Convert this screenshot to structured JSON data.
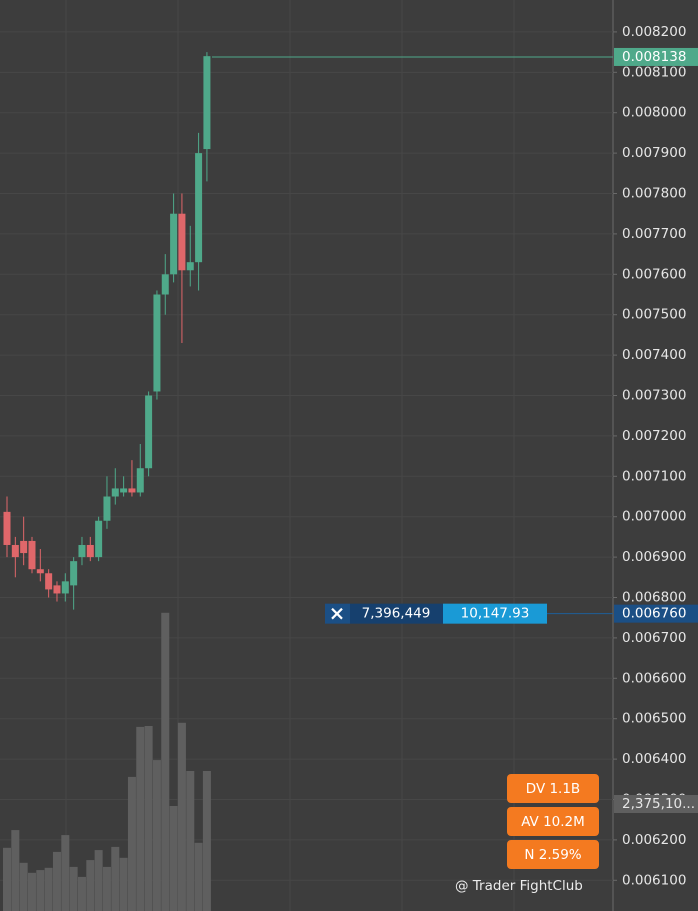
{
  "chart_data": {
    "type": "candlestick",
    "ylim": [
      0.006024,
      0.008279
    ],
    "yticks": [
      {
        "value": 0.0082,
        "label": "0.008200"
      },
      {
        "value": 0.0081,
        "label": "0.008100"
      },
      {
        "value": 0.008,
        "label": "0.008000"
      },
      {
        "value": 0.0079,
        "label": "0.007900"
      },
      {
        "value": 0.0078,
        "label": "0.007800"
      },
      {
        "value": 0.0077,
        "label": "0.007700"
      },
      {
        "value": 0.0076,
        "label": "0.007600"
      },
      {
        "value": 0.0075,
        "label": "0.007500"
      },
      {
        "value": 0.0074,
        "label": "0.007400"
      },
      {
        "value": 0.0073,
        "label": "0.007300"
      },
      {
        "value": 0.0072,
        "label": "0.007200"
      },
      {
        "value": 0.0071,
        "label": "0.007100"
      },
      {
        "value": 0.007,
        "label": "0.007000"
      },
      {
        "value": 0.0069,
        "label": "0.006900"
      },
      {
        "value": 0.0068,
        "label": "0.006800"
      },
      {
        "value": 0.0067,
        "label": "0.006700"
      },
      {
        "value": 0.0066,
        "label": "0.006600"
      },
      {
        "value": 0.0065,
        "label": "0.006500"
      },
      {
        "value": 0.0064,
        "label": "0.006400"
      },
      {
        "value": 0.0063,
        "label": "0.006300"
      },
      {
        "value": 0.0062,
        "label": "0.006200"
      },
      {
        "value": 0.0061,
        "label": "0.006100"
      }
    ],
    "grid": true,
    "up_color": "#4fa98a",
    "down_color": "#e0676a",
    "open": [
      0.007012,
      0.00693,
      0.00694,
      0.00694,
      0.00687,
      0.00686,
      0.00683,
      0.00681,
      0.00683,
      0.0069,
      0.00693,
      0.0069,
      0.00699,
      0.00705,
      0.00706,
      0.00707,
      0.00706,
      0.00712,
      0.00731,
      0.00755,
      0.0076,
      0.00775,
      0.00761,
      0.00763,
      0.00791
    ],
    "high": [
      0.00705,
      0.00695,
      0.007,
      0.00695,
      0.00692,
      0.00687,
      0.00684,
      0.00686,
      0.0069,
      0.00695,
      0.00695,
      0.007,
      0.0071,
      0.00712,
      0.0071,
      0.00714,
      0.00718,
      0.00731,
      0.00756,
      0.00765,
      0.0078,
      0.0078,
      0.00772,
      0.00795,
      0.00815
    ],
    "low": [
      0.0069,
      0.00685,
      0.00688,
      0.00686,
      0.00684,
      0.0068,
      0.00679,
      0.00679,
      0.00677,
      0.00688,
      0.00689,
      0.00689,
      0.00697,
      0.00703,
      0.00705,
      0.00705,
      0.00705,
      0.0071,
      0.00729,
      0.0075,
      0.00758,
      0.00743,
      0.00757,
      0.00756,
      0.00783
    ],
    "close": [
      0.00693,
      0.0069,
      0.00691,
      0.00687,
      0.00686,
      0.00682,
      0.00681,
      0.00684,
      0.00689,
      0.00693,
      0.0069,
      0.00699,
      0.00705,
      0.00707,
      0.00707,
      0.00706,
      0.00712,
      0.0073,
      0.00755,
      0.0076,
      0.00775,
      0.00761,
      0.00763,
      0.0079,
      0.00814
    ],
    "volume": [
      1390000,
      1780000,
      1060000,
      840000,
      900000,
      950000,
      1300000,
      1670000,
      970000,
      750000,
      1120000,
      1340000,
      970000,
      1410000,
      1170000,
      2950000,
      4050000,
      4070000,
      3320000,
      6560000,
      2310000,
      4140000,
      3080000,
      1500000,
      3080000
    ],
    "volume_color": "#5f5f5f",
    "volume_lim": [
      0,
      20040000
    ],
    "volume_label": "2,375,10...",
    "last_price": {
      "value": 0.008138,
      "label": "0.008138"
    },
    "order": {
      "price": {
        "value": 0.00676,
        "label": "0.006760"
      },
      "quantity": "7,396,449",
      "total": "10,147.93"
    },
    "stats": [
      "DV 1.1B",
      "AV 10.2M",
      "N 2.59%"
    ],
    "watermark": "@ Trader FightClub"
  }
}
